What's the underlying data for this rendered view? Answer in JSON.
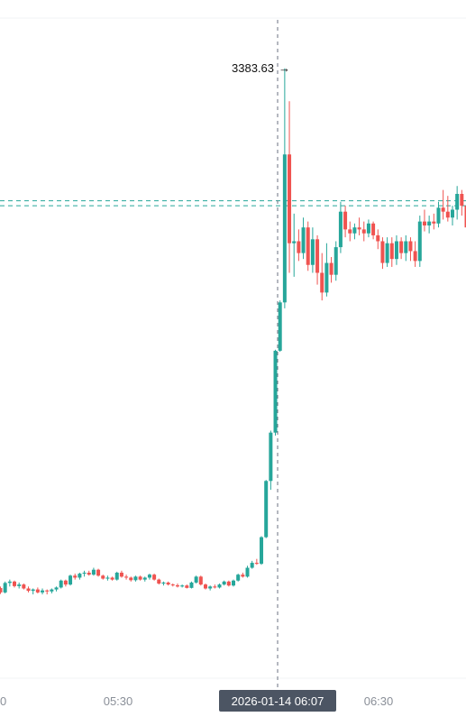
{
  "chart_data": {
    "type": "candlestick",
    "x_labels": [
      "0",
      "05:30",
      "2026-01-14 06:07",
      "06:30"
    ],
    "crosshair_time": "2026-01-14 06:07",
    "annotation": {
      "label": "3383.63",
      "value": 3383.63
    },
    "y_range": [
      3080,
      3400
    ],
    "price_lines": [
      3316.5,
      3314.0
    ],
    "candles": [
      [
        3120.2,
        3121.0,
        3117.2,
        3118.0
      ],
      [
        3118.0,
        3123.5,
        3117.5,
        3122.8
      ],
      [
        3122.8,
        3124.5,
        3121.0,
        3123.5
      ],
      [
        3123.5,
        3124.0,
        3120.5,
        3121.2
      ],
      [
        3121.2,
        3123.0,
        3120.0,
        3122.0
      ],
      [
        3122.0,
        3122.5,
        3119.5,
        3120.0
      ],
      [
        3120.0,
        3121.0,
        3118.0,
        3118.8
      ],
      [
        3118.8,
        3120.0,
        3117.0,
        3119.5
      ],
      [
        3119.5,
        3120.5,
        3117.5,
        3118.0
      ],
      [
        3118.0,
        3120.0,
        3117.0,
        3119.0
      ],
      [
        3119.0,
        3119.5,
        3117.0,
        3118.5
      ],
      [
        3118.5,
        3120.0,
        3117.5,
        3119.5
      ],
      [
        3119.5,
        3121.0,
        3118.5,
        3120.5
      ],
      [
        3120.5,
        3124.5,
        3120.0,
        3124.0
      ],
      [
        3124.0,
        3124.5,
        3121.0,
        3122.0
      ],
      [
        3122.0,
        3127.0,
        3121.5,
        3126.5
      ],
      [
        3126.5,
        3127.5,
        3124.5,
        3125.5
      ],
      [
        3125.5,
        3128.0,
        3124.5,
        3127.5
      ],
      [
        3127.5,
        3129.0,
        3126.0,
        3128.0
      ],
      [
        3128.0,
        3129.0,
        3126.5,
        3127.0
      ],
      [
        3127.0,
        3130.5,
        3126.5,
        3129.5
      ],
      [
        3129.5,
        3130.0,
        3126.0,
        3126.5
      ],
      [
        3126.5,
        3127.0,
        3124.5,
        3125.0
      ],
      [
        3125.0,
        3126.5,
        3124.0,
        3125.5
      ],
      [
        3125.5,
        3126.0,
        3124.0,
        3124.5
      ],
      [
        3124.5,
        3128.5,
        3124.0,
        3128.0
      ],
      [
        3128.0,
        3129.0,
        3125.5,
        3126.0
      ],
      [
        3126.0,
        3127.0,
        3124.5,
        3125.5
      ],
      [
        3125.5,
        3126.0,
        3123.5,
        3124.2
      ],
      [
        3124.2,
        3126.5,
        3123.5,
        3126.0
      ],
      [
        3126.0,
        3126.5,
        3124.0,
        3124.5
      ],
      [
        3124.5,
        3126.0,
        3123.5,
        3125.5
      ],
      [
        3125.5,
        3127.5,
        3124.5,
        3127.0
      ],
      [
        3127.0,
        3127.5,
        3124.0,
        3124.5
      ],
      [
        3124.5,
        3125.0,
        3122.0,
        3122.5
      ],
      [
        3122.5,
        3123.5,
        3121.5,
        3123.0
      ],
      [
        3123.0,
        3123.5,
        3121.5,
        3122.0
      ],
      [
        3122.0,
        3122.5,
        3121.0,
        3121.6
      ],
      [
        3121.6,
        3122.5,
        3120.5,
        3121.0
      ],
      [
        3121.0,
        3122.0,
        3120.5,
        3121.5
      ],
      [
        3121.5,
        3122.0,
        3120.0,
        3120.3
      ],
      [
        3120.3,
        3123.5,
        3120.0,
        3123.0
      ],
      [
        3123.0,
        3126.5,
        3122.5,
        3126.0
      ],
      [
        3126.0,
        3126.5,
        3121.5,
        3122.0
      ],
      [
        3122.0,
        3122.5,
        3119.5,
        3120.0
      ],
      [
        3120.0,
        3121.5,
        3119.0,
        3121.0
      ],
      [
        3121.0,
        3122.0,
        3120.0,
        3120.5
      ],
      [
        3120.5,
        3122.5,
        3120.0,
        3122.0
      ],
      [
        3122.0,
        3124.0,
        3121.5,
        3123.5
      ],
      [
        3123.5,
        3124.0,
        3121.0,
        3121.5
      ],
      [
        3121.5,
        3124.5,
        3121.0,
        3124.0
      ],
      [
        3124.0,
        3127.5,
        3123.5,
        3127.0
      ],
      [
        3127.0,
        3128.0,
        3125.5,
        3126.0
      ],
      [
        3126.0,
        3131.5,
        3125.5,
        3130.5
      ],
      [
        3130.5,
        3134.0,
        3130.0,
        3133.0
      ],
      [
        3133.0,
        3135.0,
        3132.0,
        3132.5
      ],
      [
        3132.5,
        3146.5,
        3132.0,
        3146.0
      ],
      [
        3146.0,
        3175.0,
        3145.5,
        3174.5
      ],
      [
        3174.5,
        3200.0,
        3170.0,
        3199.0
      ],
      [
        3199.0,
        3241.0,
        3197.5,
        3240.5
      ],
      [
        3240.5,
        3266.0,
        3240.0,
        3265.0
      ],
      [
        3265.0,
        3383.63,
        3262.0,
        3340.0
      ],
      [
        3340.0,
        3367.0,
        3280.0,
        3295.0
      ],
      [
        3295.0,
        3310.0,
        3278.0,
        3296.0
      ],
      [
        3296.0,
        3302.0,
        3286.0,
        3290.0
      ],
      [
        3290.0,
        3308.0,
        3287.0,
        3303.0
      ],
      [
        3303.0,
        3306.0,
        3281.0,
        3284.0
      ],
      [
        3284.0,
        3303.0,
        3280.0,
        3297.0
      ],
      [
        3297.0,
        3299.0,
        3274.0,
        3280.0
      ],
      [
        3280.0,
        3290.0,
        3266.0,
        3270.0
      ],
      [
        3270.0,
        3295.0,
        3268.0,
        3285.0
      ],
      [
        3285.0,
        3288.0,
        3275.0,
        3279.0
      ],
      [
        3279.0,
        3296.0,
        3276.0,
        3293.0
      ],
      [
        3293.0,
        3316.0,
        3290.0,
        3311.0
      ],
      [
        3311.0,
        3314.0,
        3298.0,
        3302.0
      ],
      [
        3302.0,
        3306.0,
        3296.0,
        3300.0
      ],
      [
        3300.0,
        3305.0,
        3297.0,
        3303.0
      ],
      [
        3303.0,
        3308.0,
        3299.0,
        3302.0
      ],
      [
        3302.0,
        3306.0,
        3296.0,
        3300.0
      ],
      [
        3300.0,
        3307.0,
        3298.0,
        3305.0
      ],
      [
        3305.0,
        3306.0,
        3297.0,
        3299.0
      ],
      [
        3299.0,
        3302.0,
        3292.0,
        3296.0
      ],
      [
        3296.0,
        3298.0,
        3282.0,
        3285.0
      ],
      [
        3285.0,
        3298.0,
        3283.0,
        3295.0
      ],
      [
        3295.0,
        3298.0,
        3283.0,
        3287.0
      ],
      [
        3287.0,
        3299.0,
        3284.0,
        3296.0
      ],
      [
        3296.0,
        3298.0,
        3287.0,
        3290.0
      ],
      [
        3290.0,
        3299.0,
        3286.0,
        3296.0
      ],
      [
        3296.0,
        3298.0,
        3286.0,
        3291.0
      ],
      [
        3291.0,
        3296.0,
        3283.0,
        3286.0
      ],
      [
        3286.0,
        3309.0,
        3283.0,
        3306.0
      ],
      [
        3306.0,
        3312.0,
        3301.0,
        3304.0
      ],
      [
        3304.0,
        3309.0,
        3300.0,
        3306.0
      ],
      [
        3306.0,
        3310.0,
        3302.0,
        3305.0
      ],
      [
        3305.0,
        3316.0,
        3303.0,
        3313.0
      ],
      [
        3313.0,
        3322.0,
        3307.0,
        3311.0
      ],
      [
        3311.0,
        3319.0,
        3306.0,
        3308.0
      ],
      [
        3308.0,
        3314.0,
        3304.0,
        3312.0
      ],
      [
        3312.0,
        3324.0,
        3307.0,
        3320.0
      ],
      [
        3320.0,
        3322.0,
        3309.0,
        3314.0
      ],
      [
        3314.0,
        3317.0,
        3300.0,
        3303.0
      ]
    ],
    "colors": {
      "up": "#26a69a",
      "down": "#ef5350",
      "grid": "#eef0f3",
      "crosshair": "#6b7280",
      "price_line": "#26a69a",
      "axis_text": "#8a8f98",
      "badge": "#4c5563"
    }
  }
}
